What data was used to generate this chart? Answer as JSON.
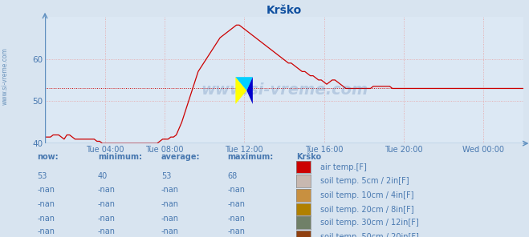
{
  "title": "Krško",
  "bg_color": "#d8e4f0",
  "plot_bg_color": "#dce8f4",
  "grid_color": "#e8a0a0",
  "line_color": "#cc0000",
  "avg_line_color": "#cc0000",
  "axis_color": "#6090c0",
  "text_color": "#4878b0",
  "ylim": [
    40,
    70
  ],
  "yticks": [
    40,
    50,
    60
  ],
  "avg_value": 53,
  "title_color": "#1050a0",
  "watermark": "www.si-vreme.com",
  "legend": {
    "now": "53",
    "minimum": "40",
    "average": "53",
    "maximum": "68",
    "location": "Krško",
    "rows": [
      {
        "color": "#cc0000",
        "label": "air temp.[F]"
      },
      {
        "color": "#c8b8b0",
        "label": "soil temp. 5cm / 2in[F]"
      },
      {
        "color": "#c89040",
        "label": "soil temp. 10cm / 4in[F]"
      },
      {
        "color": "#b08000",
        "label": "soil temp. 20cm / 8in[F]"
      },
      {
        "color": "#708068",
        "label": "soil temp. 30cm / 12in[F]"
      },
      {
        "color": "#904010",
        "label": "soil temp. 50cm / 20in[F]"
      }
    ]
  },
  "xtick_labels": [
    "Tue 04:00",
    "Tue 08:00",
    "Tue 12:00",
    "Tue 16:00",
    "Tue 20:00",
    "Wed 00:00"
  ],
  "xtick_positions": [
    0.125,
    0.25,
    0.416,
    0.583,
    0.75,
    0.916
  ],
  "temp_data": [
    41.5,
    41.5,
    41.5,
    42.0,
    42.0,
    42.0,
    41.5,
    41.0,
    42.0,
    42.0,
    41.5,
    41.0,
    41.0,
    41.0,
    41.0,
    41.0,
    41.0,
    41.0,
    41.0,
    40.5,
    40.5,
    40.0,
    40.0,
    40.0,
    40.0,
    40.0,
    40.0,
    40.0,
    40.0,
    40.0,
    40.0,
    40.0,
    40.0,
    40.0,
    40.0,
    40.0,
    40.0,
    40.0,
    40.0,
    40.0,
    40.0,
    40.0,
    40.5,
    41.0,
    41.0,
    41.0,
    41.5,
    41.5,
    42.0,
    43.5,
    45.0,
    47.0,
    49.0,
    51.0,
    53.0,
    55.0,
    57.0,
    58.0,
    59.0,
    60.0,
    61.0,
    62.0,
    63.0,
    64.0,
    65.0,
    65.5,
    66.0,
    66.5,
    67.0,
    67.5,
    68.0,
    68.0,
    67.5,
    67.0,
    66.5,
    66.0,
    65.5,
    65.0,
    64.5,
    64.0,
    63.5,
    63.0,
    62.5,
    62.0,
    61.5,
    61.0,
    60.5,
    60.0,
    59.5,
    59.0,
    59.0,
    58.5,
    58.0,
    57.5,
    57.0,
    57.0,
    56.5,
    56.0,
    56.0,
    55.5,
    55.0,
    55.0,
    54.5,
    54.0,
    54.5,
    55.0,
    55.0,
    54.5,
    54.0,
    53.5,
    53.0,
    53.0,
    53.0,
    53.0,
    53.0,
    53.0,
    53.0,
    53.0,
    53.0,
    53.0,
    53.5,
    53.5,
    53.5,
    53.5,
    53.5,
    53.5,
    53.5,
    53.0,
    53.0,
    53.0,
    53.0,
    53.0,
    53.0,
    53.0,
    53.0,
    53.0,
    53.0,
    53.0,
    53.0,
    53.0,
    53.0,
    53.0,
    53.0,
    53.0,
    53.0,
    53.0,
    53.0,
    53.0,
    53.0,
    53.0,
    53.0,
    53.0,
    53.0,
    53.0,
    53.0,
    53.0,
    53.0,
    53.0,
    53.0,
    53.0,
    53.0,
    53.0,
    53.0,
    53.0,
    53.0,
    53.0,
    53.0,
    53.0,
    53.0,
    53.0,
    53.0,
    53.0,
    53.0,
    53.0,
    53.0,
    53.0
  ]
}
